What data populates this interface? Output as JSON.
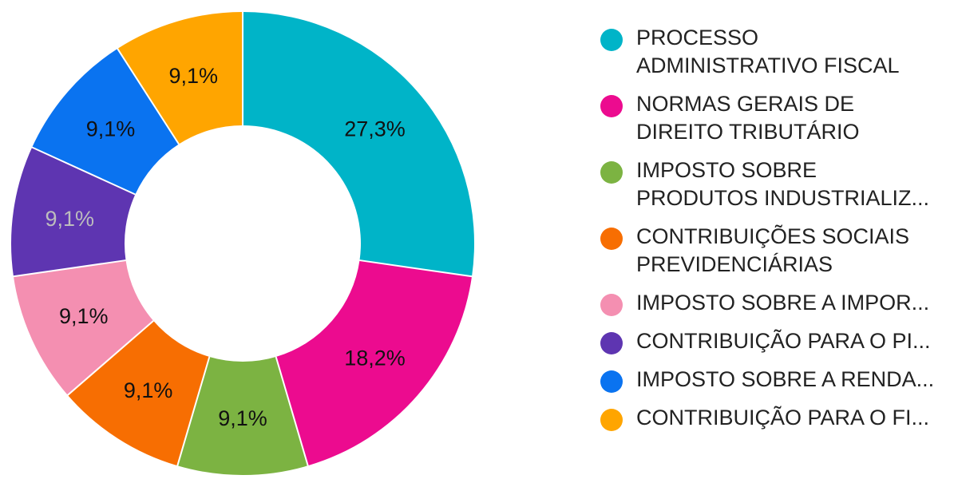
{
  "chart_data": {
    "type": "pie",
    "donut": true,
    "title": "",
    "legend_position": "right",
    "slices": [
      {
        "label": "PROCESSO\nADMINISTRATIVO FISCAL",
        "value": 27.3,
        "display": "27,3%",
        "color": "#00b4c8",
        "text_color": "#111111"
      },
      {
        "label": "NORMAS GERAIS DE\nDIREITO TRIBUTÁRIO",
        "value": 18.2,
        "display": "18,2%",
        "color": "#ec0b8f",
        "text_color": "#111111"
      },
      {
        "label": "IMPOSTO SOBRE\nPRODUTOS INDUSTRIALIZ...",
        "value": 9.1,
        "display": "9,1%",
        "color": "#7cb342",
        "text_color": "#111111"
      },
      {
        "label": "CONTRIBUIÇÕES SOCIAIS\nPREVIDENCIÁRIAS",
        "value": 9.1,
        "display": "9,1%",
        "color": "#f76e02",
        "text_color": "#111111"
      },
      {
        "label": "IMPOSTO SOBRE A IMPOR...",
        "value": 9.1,
        "display": "9,1%",
        "color": "#f48fb1",
        "text_color": "#111111"
      },
      {
        "label": "CONTRIBUIÇÃO PARA O PI...",
        "value": 9.1,
        "display": "9,1%",
        "color": "#5e35b1",
        "text_color": "#bdbdbd"
      },
      {
        "label": "IMPOSTO SOBRE A RENDA...",
        "value": 9.1,
        "display": "9,1%",
        "color": "#0a73f0",
        "text_color": "#111111"
      },
      {
        "label": "CONTRIBUIÇÃO PARA O FI...",
        "value": 9.1,
        "display": "9,1%",
        "color": "#ffa500",
        "text_color": "#111111"
      }
    ]
  }
}
